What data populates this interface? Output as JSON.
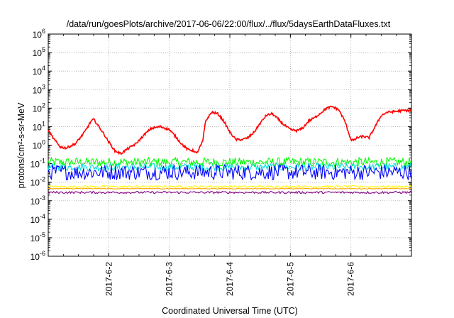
{
  "chart_data": {
    "type": "line",
    "title": "/data/run/goesPlots/archive/2017-06-06/22:00/flux/../flux/5daysEarthDataFluxes.txt",
    "xlabel": "Coordinated Universal Time (UTC)",
    "ylabel": "protons/cm²-s-sr-MeV",
    "yscale": "log",
    "ylim": [
      1e-06,
      1000000.0
    ],
    "xlim_days": [
      0,
      6
    ],
    "grid": true,
    "x_ticks": [
      {
        "day": 1,
        "label": "2017-6-2"
      },
      {
        "day": 2,
        "label": "2017-6-3"
      },
      {
        "day": 3,
        "label": "2017-6-4"
      },
      {
        "day": 4,
        "label": "2017-6-5"
      },
      {
        "day": 5,
        "label": "2017-6-6"
      }
    ],
    "y_ticks": [
      {
        "value": 1e-06,
        "base": "10",
        "exp": "-6"
      },
      {
        "value": 1e-05,
        "base": "10",
        "exp": "-5"
      },
      {
        "value": 0.0001,
        "base": "10",
        "exp": "-4"
      },
      {
        "value": 0.001,
        "base": "10",
        "exp": "-3"
      },
      {
        "value": 0.01,
        "base": "10",
        "exp": "-2"
      },
      {
        "value": 0.1,
        "base": "10",
        "exp": "-1"
      },
      {
        "value": 1.0,
        "base": "10",
        "exp": "0"
      },
      {
        "value": 10.0,
        "base": "10",
        "exp": "1"
      },
      {
        "value": 100.0,
        "base": "10",
        "exp": "2"
      },
      {
        "value": 1000.0,
        "base": "10",
        "exp": "3"
      },
      {
        "value": 10000.0,
        "base": "10",
        "exp": "4"
      },
      {
        "value": 100000.0,
        "base": "10",
        "exp": "5"
      },
      {
        "value": 1000000.0,
        "base": "10",
        "exp": "6"
      }
    ],
    "series": [
      {
        "color": "#ff0000",
        "x": [
          0,
          0.1,
          0.2,
          0.3,
          0.45,
          0.6,
          0.7,
          0.75,
          0.8,
          0.9,
          1.0,
          1.1,
          1.2,
          1.3,
          1.45,
          1.6,
          1.7,
          1.85,
          2.0,
          2.1,
          2.2,
          2.3,
          2.4,
          2.45,
          2.55,
          2.6,
          2.7,
          2.8,
          2.9,
          3.0,
          3.1,
          3.2,
          3.3,
          3.4,
          3.5,
          3.6,
          3.7,
          3.8,
          3.9,
          4.0,
          4.1,
          4.2,
          4.3,
          4.4,
          4.6,
          4.7,
          4.8,
          4.9,
          5.0,
          5.05,
          5.1,
          5.2,
          5.3,
          5.4,
          5.5,
          5.6,
          5.7,
          5.8,
          5.9,
          6.0
        ],
        "y": [
          6,
          2,
          0.8,
          0.7,
          1.2,
          5,
          18,
          25,
          15,
          5,
          1.5,
          0.5,
          0.35,
          0.6,
          1.2,
          4,
          8,
          10,
          7,
          3,
          1.2,
          0.6,
          0.5,
          0.35,
          1.5,
          20,
          60,
          50,
          20,
          5,
          2,
          2,
          2.5,
          5,
          15,
          40,
          50,
          25,
          12,
          7,
          6,
          8,
          20,
          30,
          100,
          120,
          80,
          20,
          2,
          1.8,
          2.5,
          3,
          2.5,
          10,
          40,
          60,
          65,
          70,
          75,
          75
        ]
      },
      {
        "color": "#00ff00",
        "level": 0.12,
        "spread": 0.5
      },
      {
        "color": "#00dddd",
        "level": 0.065,
        "spread": 0.4
      },
      {
        "color": "#0000ff",
        "level": 0.035,
        "spread": 0.85
      },
      {
        "color": "#ffff00",
        "level": 0.0058,
        "spread": 0.1
      },
      {
        "color": "#ffa500",
        "level": 0.0045,
        "spread": 0.05
      },
      {
        "color": "#800080",
        "level": 0.0028,
        "spread": 0.12
      }
    ]
  }
}
